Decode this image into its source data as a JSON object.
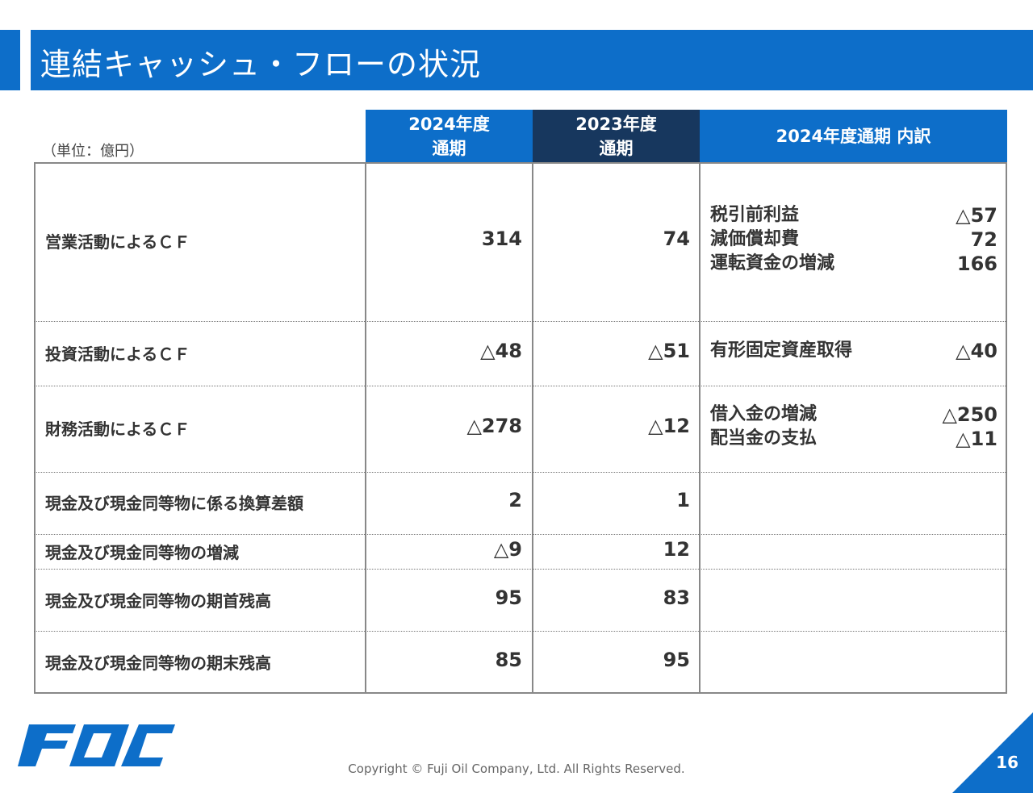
{
  "title": "連結キャッシュ・フローの状況",
  "unit": "（単位：億円）",
  "headers": {
    "col1": [
      "2024年度",
      "通期"
    ],
    "col2": [
      "2023年度",
      "通期"
    ],
    "col3": "2024年度通期 内訳"
  },
  "rows": [
    {
      "label": "営業活動によるＣＦ",
      "v2024": "314",
      "v2023": "74",
      "breakdown": [
        [
          "税引前利益",
          "△57"
        ],
        [
          "減価償却費",
          "72"
        ],
        [
          "運転資金の増減",
          "166"
        ]
      ]
    },
    {
      "label": "投資活動によるＣＦ",
      "v2024": "△48",
      "v2023": "△51",
      "breakdown": [
        [
          "有形固定資産取得",
          "△40"
        ]
      ]
    },
    {
      "label": "財務活動によるＣＦ",
      "v2024": "△278",
      "v2023": "△12",
      "breakdown": [
        [
          "借入金の増減",
          "△250"
        ],
        [
          "配当金の支払",
          "△11"
        ]
      ]
    },
    {
      "label": "現金及び現金同等物に係る換算差額",
      "v2024": "2",
      "v2023": "1",
      "breakdown": []
    },
    {
      "label": "現金及び現金同等物の増減",
      "v2024": "△9",
      "v2023": "12",
      "breakdown": []
    },
    {
      "label": "現金及び現金同等物の期首残高",
      "v2024": "95",
      "v2023": "83",
      "breakdown": []
    },
    {
      "label": "現金及び現金同等物の期末残高",
      "v2024": "85",
      "v2023": "95",
      "breakdown": []
    }
  ],
  "footer": {
    "logo_text": "FOC",
    "copyright": "Copyright © Fuji Oil Company, Ltd. All Rights Reserved.",
    "page_number": "16"
  },
  "colors": {
    "brand_blue": "#0d6ec9",
    "dark_navy": "#17375e"
  }
}
